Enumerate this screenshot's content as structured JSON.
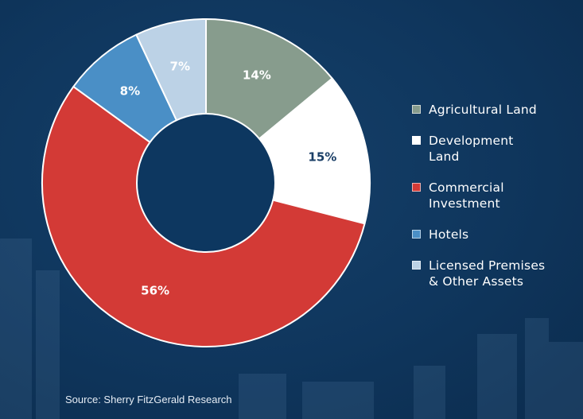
{
  "chart_data": {
    "type": "pie",
    "donut": true,
    "categories": [
      "Agricultural Land",
      "Development\nLand",
      "Commercial\nInvestment",
      "Hotels",
      "Licensed Premises\n& Other Assets"
    ],
    "values": [
      14,
      15,
      56,
      8,
      7
    ],
    "value_labels": [
      "14%",
      "15%",
      "56%",
      "8%",
      "7%"
    ],
    "colors": [
      "#879c8d",
      "#ffffff",
      "#d33a36",
      "#4a8fc6",
      "#bcd2e6"
    ],
    "label_colors": [
      "#ffffff",
      "#1a3e66",
      "#ffffff",
      "#ffffff",
      "#ffffff"
    ],
    "legend_position": "right",
    "start_angle": "top",
    "direction": "clockwise"
  },
  "colors": {
    "background": "#0f365d",
    "donut_hole": "#0d3760"
  },
  "source": "Source: Sherry FitzGerald Research"
}
